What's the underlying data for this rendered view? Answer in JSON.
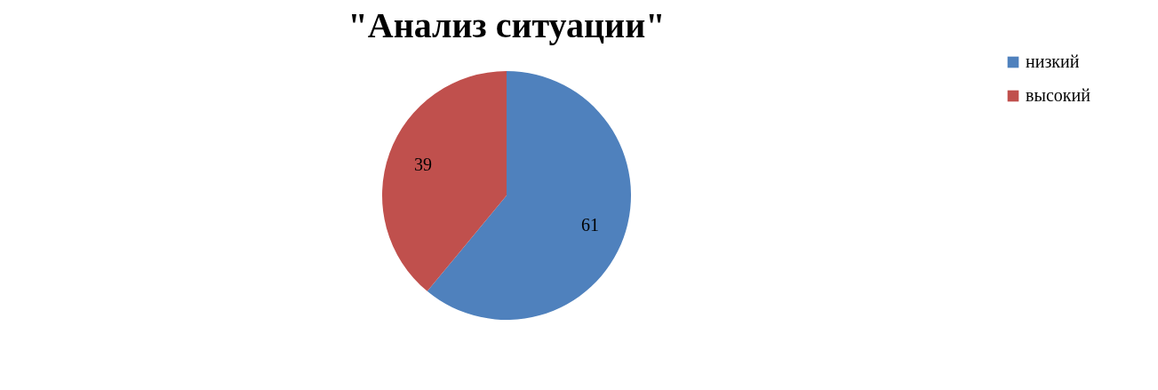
{
  "chart_data": {
    "type": "pie",
    "title": "\"Анализ ситуации\"",
    "categories": [
      "низкий",
      "высокий"
    ],
    "values": [
      61,
      39
    ],
    "colors": [
      "#4f81bd",
      "#c0504d"
    ],
    "data_labels": true,
    "legend": "right"
  }
}
